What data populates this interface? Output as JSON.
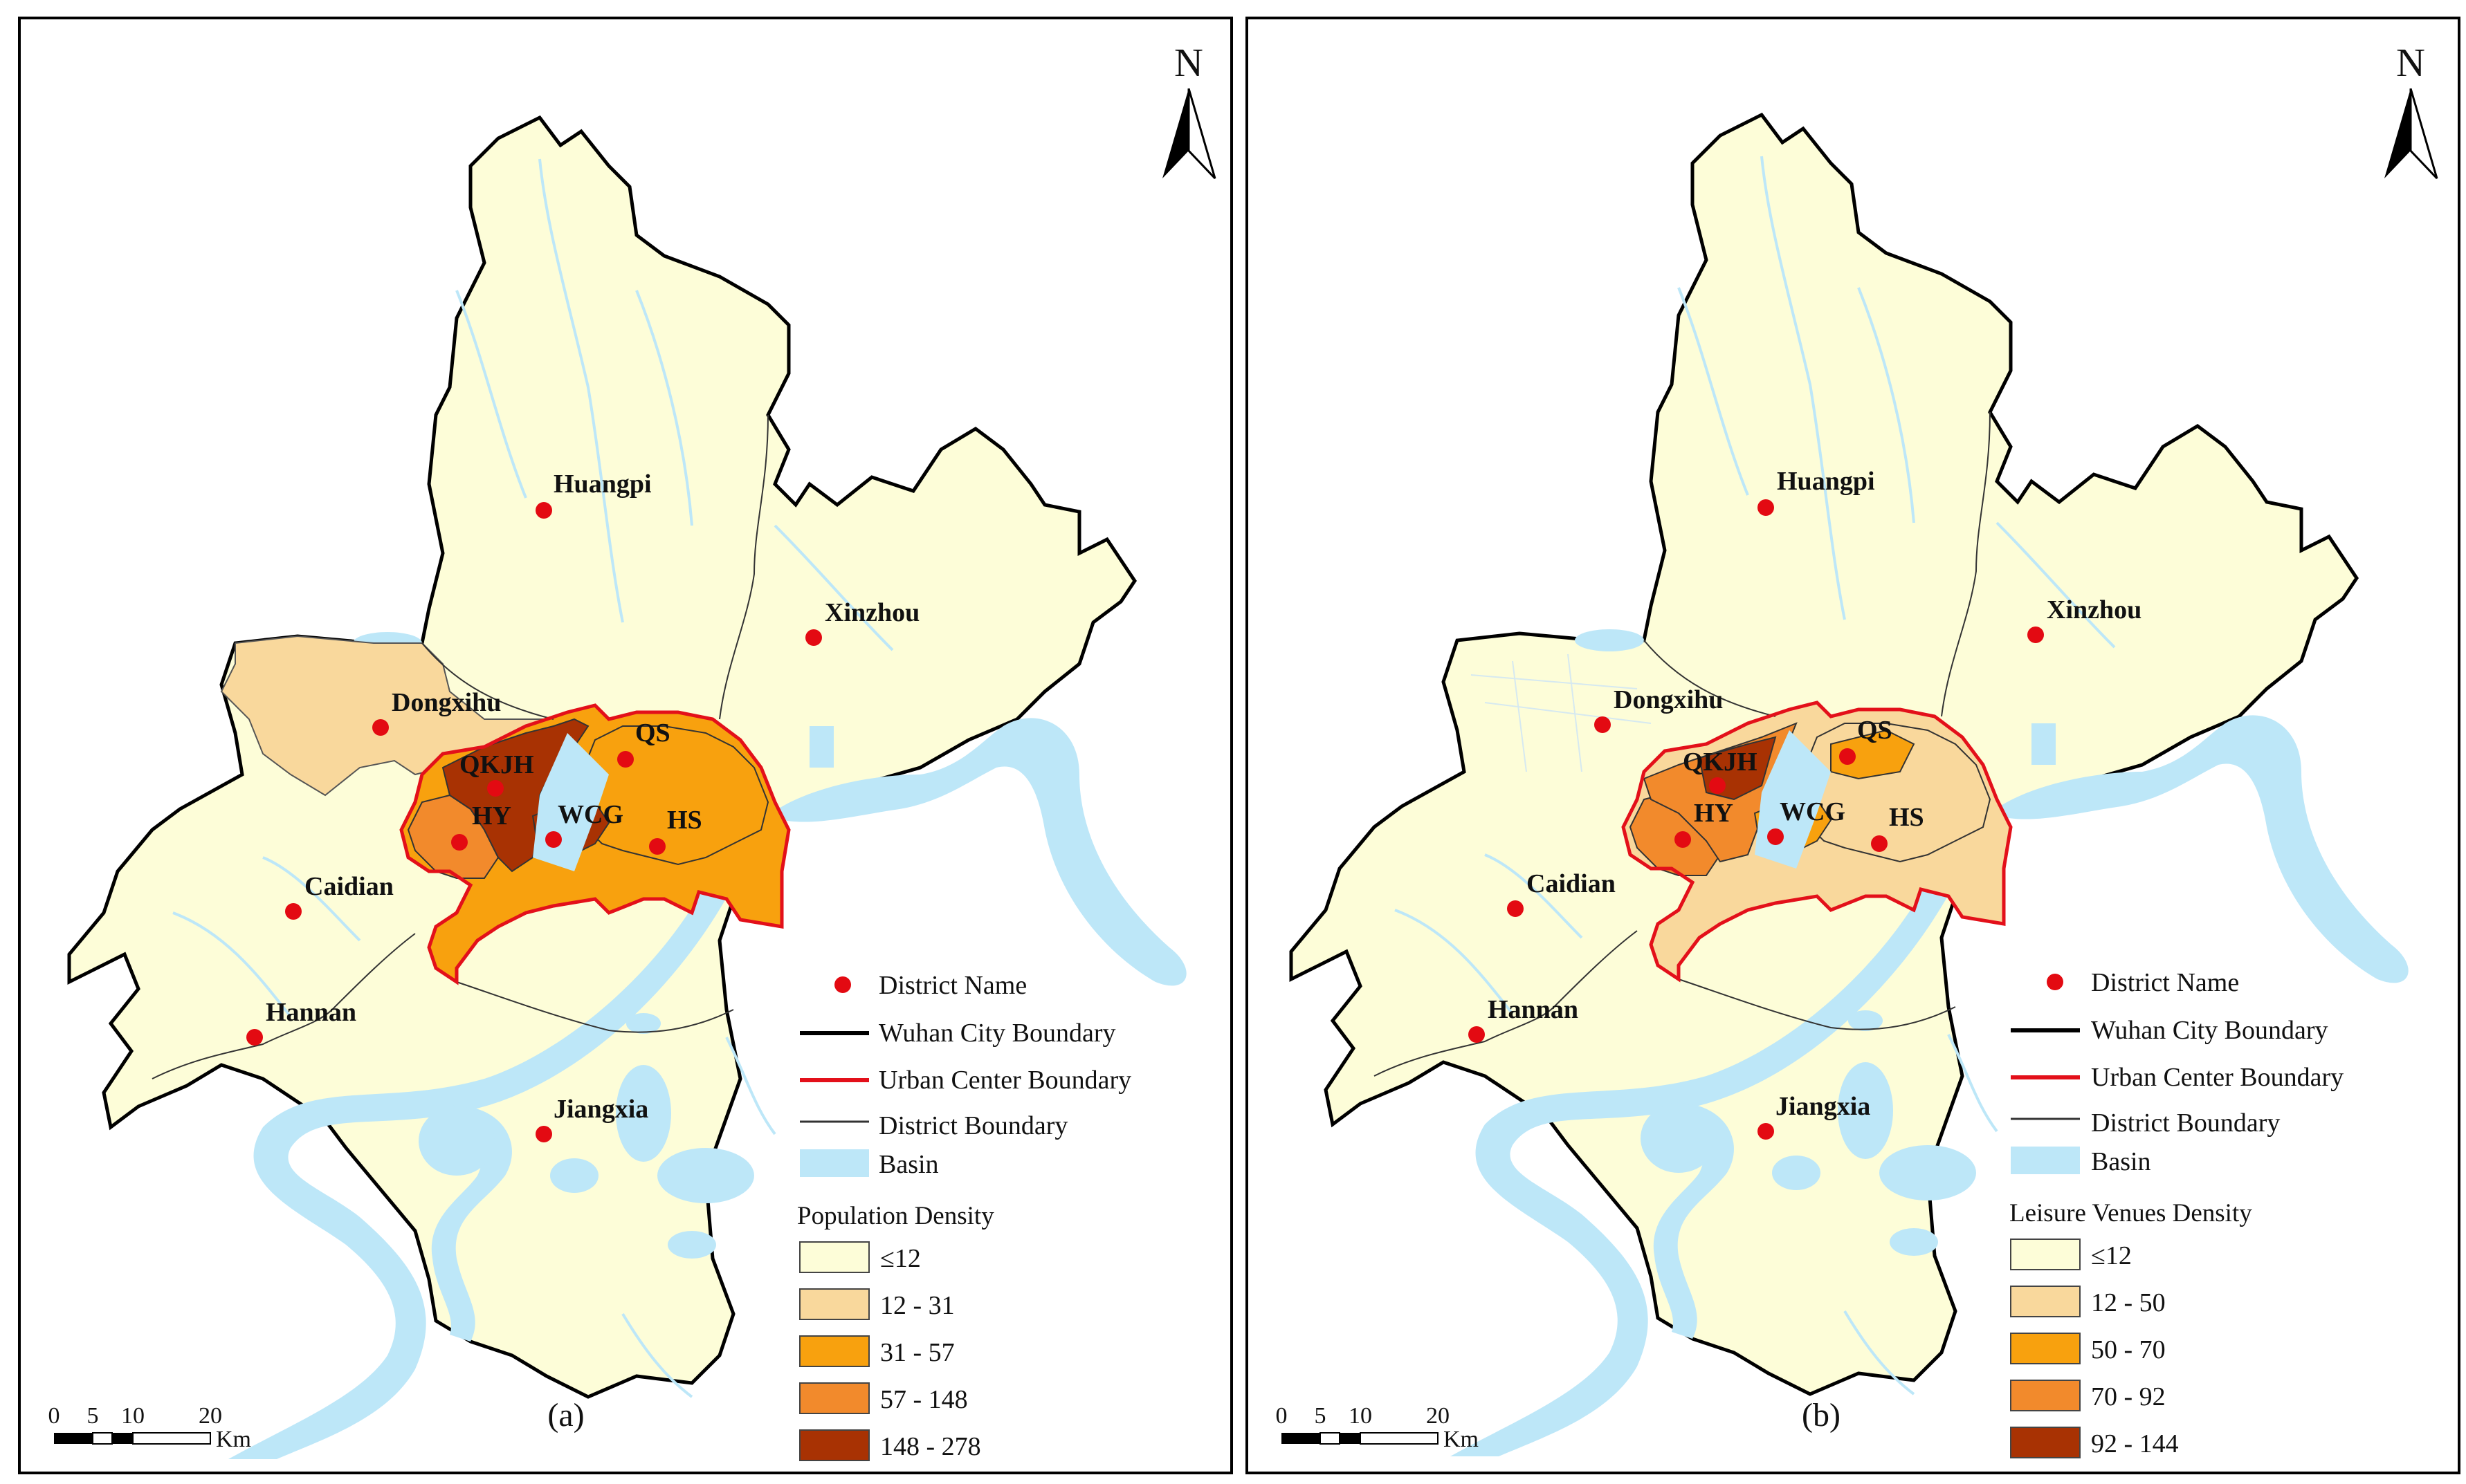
{
  "north_label": "N",
  "scale": {
    "ticks": [
      "0",
      "5",
      "10",
      "20"
    ],
    "unit": "Km"
  },
  "panels": [
    {
      "id": "a",
      "panel_label": "(a)",
      "districts": [
        "Huangpi",
        "Xinzhou",
        "Dongxihu",
        "QKJH",
        "QS",
        "HY",
        "WCG",
        "HS",
        "Caidian",
        "Hannan",
        "Jiangxia"
      ],
      "legend": {
        "symbols": [
          "District Name",
          "Wuhan City Boundary",
          "Urban Center Boundary",
          "District Boundary",
          "Basin"
        ],
        "title": "Population Density",
        "classes": [
          "≤12",
          "12 - 31",
          "31 - 57",
          "57 - 148",
          "148 - 278"
        ]
      }
    },
    {
      "id": "b",
      "panel_label": "(b)",
      "districts": [
        "Huangpi",
        "Xinzhou",
        "Dongxihu",
        "QKJH",
        "QS",
        "HY",
        "WCG",
        "HS",
        "Caidian",
        "Hannan",
        "Jiangxia"
      ],
      "legend": {
        "symbols": [
          "District Name",
          "Wuhan City Boundary",
          "Urban Center Boundary",
          "District Boundary",
          "Basin"
        ],
        "title": "Leisure Venues Density",
        "classes": [
          "≤12",
          "12 - 50",
          "50 - 70",
          "70 - 92",
          "92 - 144"
        ]
      }
    }
  ],
  "colors": {
    "class1": "#fdfdd8",
    "class2": "#f9d89c",
    "class3": "#f8a10e",
    "class4": "#f28a2c",
    "class5": "#a83203",
    "basin": "#bde7f8",
    "city_boundary": "#000000",
    "urban_boundary": "#e3101a",
    "district_point": "#e30a12"
  }
}
